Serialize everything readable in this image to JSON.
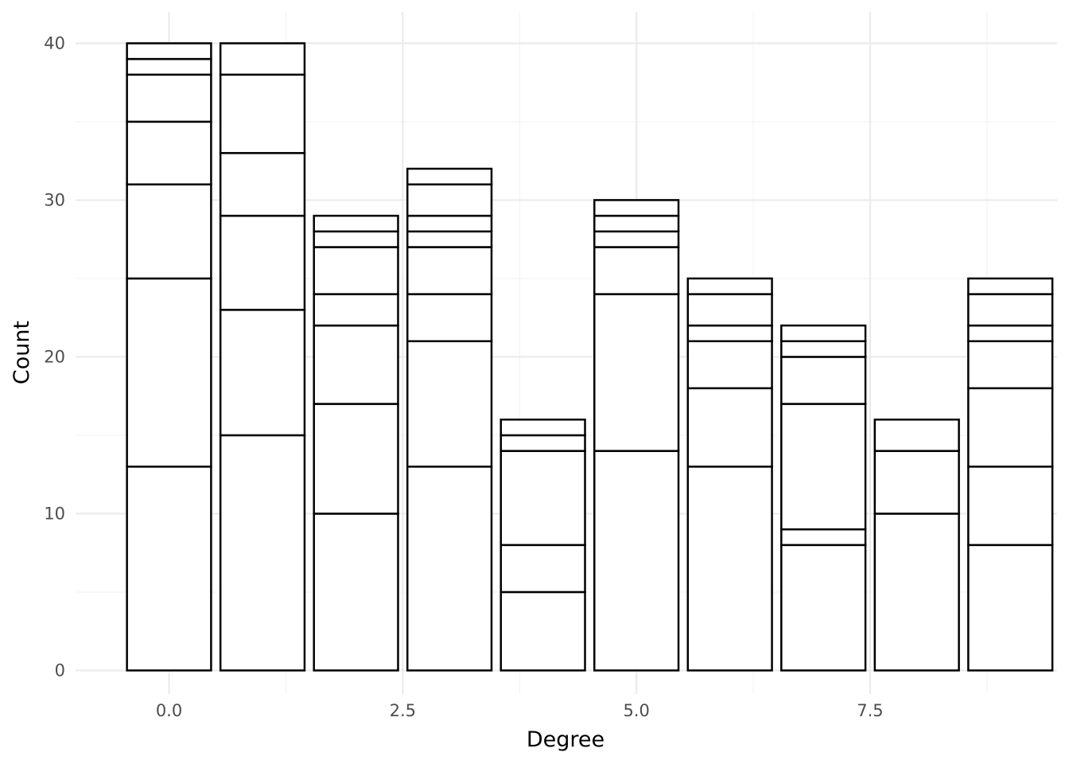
{
  "chart_data": {
    "type": "bar",
    "stacked": true,
    "xlabel": "Degree",
    "ylabel": "Count",
    "xlim": [
      -1.0,
      9.5
    ],
    "ylim": [
      -1.5,
      42
    ],
    "x_ticks": [
      0.0,
      2.5,
      5.0,
      7.5
    ],
    "x_tick_labels": [
      "0.0",
      "2.5",
      "5.0",
      "7.5"
    ],
    "y_ticks": [
      0,
      10,
      20,
      30,
      40
    ],
    "y_tick_labels": [
      "0",
      "10",
      "20",
      "30",
      "40"
    ],
    "grid": true,
    "legend": "none",
    "fill_color": "#ffffff",
    "edge_color": "#000000",
    "bars": [
      {
        "x": 0,
        "segments": [
          13,
          12,
          6,
          4,
          3,
          1,
          1
        ],
        "total": 40
      },
      {
        "x": 1,
        "segments": [
          15,
          8,
          6,
          4,
          5,
          2
        ],
        "total": 40
      },
      {
        "x": 2,
        "segments": [
          10,
          7,
          5,
          2,
          3,
          1,
          1
        ],
        "total": 29
      },
      {
        "x": 3,
        "segments": [
          13,
          8,
          3,
          3,
          1,
          1,
          2,
          1
        ],
        "total": 32
      },
      {
        "x": 4,
        "segments": [
          5,
          3,
          6,
          1,
          1
        ],
        "total": 16
      },
      {
        "x": 5,
        "segments": [
          14,
          10,
          3,
          1,
          1,
          1
        ],
        "total": 30
      },
      {
        "x": 6,
        "segments": [
          13,
          5,
          3,
          1,
          2,
          1
        ],
        "total": 25
      },
      {
        "x": 7,
        "segments": [
          8,
          1,
          8,
          3,
          1,
          1
        ],
        "total": 22
      },
      {
        "x": 8,
        "segments": [
          10,
          4,
          2
        ],
        "total": 16
      },
      {
        "x": 9,
        "segments": [
          8,
          5,
          5,
          3,
          1,
          2,
          1
        ],
        "total": 25
      }
    ]
  }
}
